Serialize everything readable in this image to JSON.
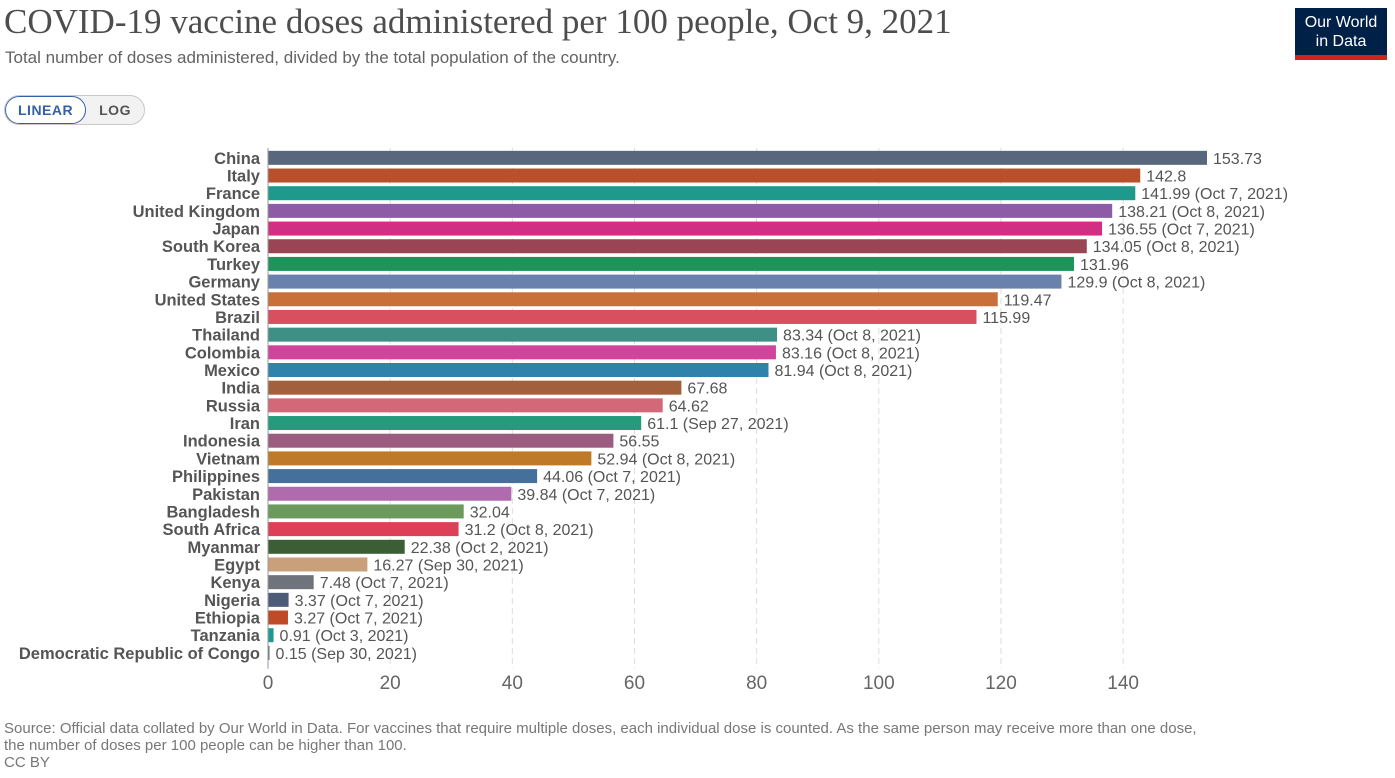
{
  "header": {
    "title": "COVID-19 vaccine doses administered per 100 people, Oct 9, 2021",
    "subtitle": "Total number of doses administered, divided by the total population of the country."
  },
  "logo": {
    "line1": "Our World",
    "line2": "in Data",
    "bg_color": "#002147",
    "accent_color": "#ce261e"
  },
  "scale_toggle": {
    "linear_label": "LINEAR",
    "log_label": "LOG",
    "selected": "LINEAR"
  },
  "footer": {
    "source_line1": "Source: Official data collated by Our World in Data. For vaccines that require multiple doses, each individual dose is counted. As the same person may receive more than one dose,",
    "source_line2": "the number of doses per 100 people can be higher than 100.",
    "license": "CC BY"
  },
  "chart_data": {
    "type": "bar",
    "orientation": "horizontal",
    "title": "COVID-19 vaccine doses administered per 100 people, Oct 9, 2021",
    "xlim": [
      0,
      153.73
    ],
    "xticks": [
      0,
      20,
      40,
      60,
      80,
      100,
      120,
      140
    ],
    "grid": "vertical dashed",
    "categories": [
      "China",
      "Italy",
      "France",
      "United Kingdom",
      "Japan",
      "South Korea",
      "Turkey",
      "Germany",
      "United States",
      "Brazil",
      "Thailand",
      "Colombia",
      "Mexico",
      "India",
      "Russia",
      "Iran",
      "Indonesia",
      "Vietnam",
      "Philippines",
      "Pakistan",
      "Bangladesh",
      "South Africa",
      "Myanmar",
      "Egypt",
      "Kenya",
      "Nigeria",
      "Ethiopia",
      "Tanzania",
      "Democratic Republic of Congo"
    ],
    "values": [
      153.73,
      142.8,
      141.99,
      138.21,
      136.55,
      134.05,
      131.96,
      129.9,
      119.47,
      115.99,
      83.34,
      83.16,
      81.94,
      67.68,
      64.62,
      61.1,
      56.55,
      52.94,
      44.06,
      39.84,
      32.04,
      31.2,
      22.38,
      16.27,
      7.48,
      3.37,
      3.27,
      0.91,
      0.15
    ],
    "value_labels": [
      "153.73",
      "142.8",
      "141.99 (Oct 7, 2021)",
      "138.21 (Oct 8, 2021)",
      "136.55 (Oct 7, 2021)",
      "134.05 (Oct 8, 2021)",
      "131.96",
      "129.9 (Oct 8, 2021)",
      "119.47",
      "115.99",
      "83.34 (Oct 8, 2021)",
      "83.16 (Oct 8, 2021)",
      "81.94 (Oct 8, 2021)",
      "67.68",
      "64.62",
      "61.1 (Sep 27, 2021)",
      "56.55",
      "52.94 (Oct 8, 2021)",
      "44.06 (Oct 7, 2021)",
      "39.84 (Oct 7, 2021)",
      "32.04",
      "31.2 (Oct 8, 2021)",
      "22.38 (Oct 2, 2021)",
      "16.27 (Sep 30, 2021)",
      "7.48 (Oct 7, 2021)",
      "3.37 (Oct 7, 2021)",
      "3.27 (Oct 7, 2021)",
      "0.91 (Oct 3, 2021)",
      "0.15 (Sep 30, 2021)"
    ],
    "colors": [
      "#58677c",
      "#b9502b",
      "#1e9a8d",
      "#8e5ba6",
      "#d22f84",
      "#994554",
      "#1f9359",
      "#6a80ad",
      "#c9703a",
      "#d8505f",
      "#3e8f85",
      "#d0459b",
      "#2f82ac",
      "#a2603c",
      "#d26878",
      "#269a7c",
      "#9c5c7f",
      "#bf7a27",
      "#45709c",
      "#b06bae",
      "#6b9a5c",
      "#dc3f56",
      "#3c5e35",
      "#c9a07a",
      "#6f747c",
      "#4d5a78",
      "#bf4a27",
      "#1e9a93",
      "#5b6b87"
    ]
  }
}
